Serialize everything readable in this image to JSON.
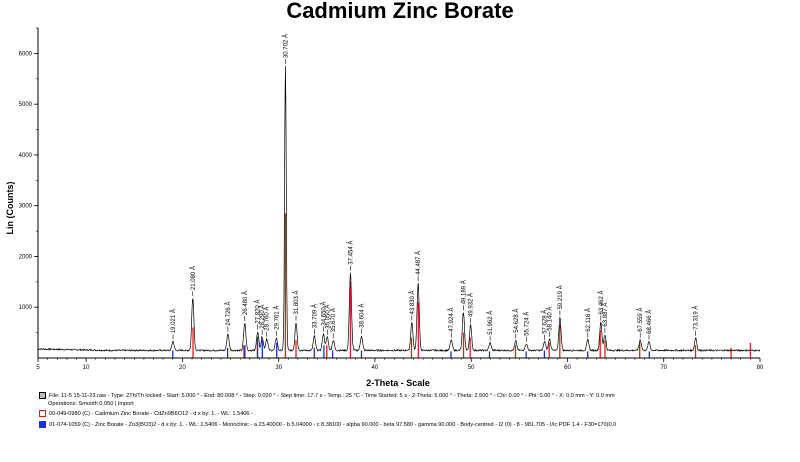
{
  "chart_data": {
    "type": "line",
    "title": "Cadmium Zinc Borate",
    "xlabel": "2-Theta - Scale",
    "ylabel": "Lin (Counts)",
    "xlim": [
      5,
      80
    ],
    "ylim": [
      0,
      6500
    ],
    "xticks": [
      5,
      10,
      20,
      30,
      40,
      50,
      60,
      70,
      80
    ],
    "yticks": [
      1000,
      2000,
      3000,
      4000,
      5000,
      6000
    ],
    "baseline": 150,
    "peaks": [
      {
        "x": 19.021,
        "y": 330,
        "label": "19.021 Å"
      },
      {
        "x": 21.08,
        "y": 1180,
        "label": "21.080 Å"
      },
      {
        "x": 24.726,
        "y": 480,
        "label": "24.726 Å"
      },
      {
        "x": 26.48,
        "y": 690,
        "label": "26.480 Å"
      },
      {
        "x": 27.82,
        "y": 520,
        "label": "27.820 Å"
      },
      {
        "x": 28.29,
        "y": 420,
        "label": "28.290 Å"
      },
      {
        "x": 28.76,
        "y": 380,
        "label": "28.760 Å"
      },
      {
        "x": 29.761,
        "y": 400,
        "label": "29.761 Å"
      },
      {
        "x": 30.702,
        "y": 5750,
        "label": "30.702 Å"
      },
      {
        "x": 31.803,
        "y": 700,
        "label": "31.803 Å"
      },
      {
        "x": 33.709,
        "y": 430,
        "label": "33.709 Å"
      },
      {
        "x": 34.65,
        "y": 480,
        "label": "34.650 Å"
      },
      {
        "x": 35.05,
        "y": 420,
        "label": "35.050 Å"
      },
      {
        "x": 35.67,
        "y": 350,
        "label": "35.670 Å"
      },
      {
        "x": 37.454,
        "y": 1680,
        "label": "37.454 Å"
      },
      {
        "x": 38.604,
        "y": 440,
        "label": "38.604 Å"
      },
      {
        "x": 43.83,
        "y": 700,
        "label": "43.830 Å"
      },
      {
        "x": 44.487,
        "y": 1480,
        "label": "44.487 Å"
      },
      {
        "x": 47.924,
        "y": 360,
        "label": "47.924 Å"
      },
      {
        "x": 49.189,
        "y": 900,
        "label": "49.189 Å"
      },
      {
        "x": 49.932,
        "y": 650,
        "label": "49.932 Å"
      },
      {
        "x": 51.962,
        "y": 300,
        "label": "51.962 Å"
      },
      {
        "x": 54.628,
        "y": 340,
        "label": "54.628 Å"
      },
      {
        "x": 55.724,
        "y": 280,
        "label": "55.724 Å"
      },
      {
        "x": 57.628,
        "y": 320,
        "label": "57.628 Å"
      },
      {
        "x": 58.14,
        "y": 380,
        "label": "58.140 Å"
      },
      {
        "x": 59.219,
        "y": 800,
        "label": "59.219 Å"
      },
      {
        "x": 62.116,
        "y": 360,
        "label": "62.116 Å"
      },
      {
        "x": 63.462,
        "y": 700,
        "label": "63.462 Å"
      },
      {
        "x": 63.887,
        "y": 460,
        "label": "63.887 Å"
      },
      {
        "x": 67.559,
        "y": 360,
        "label": "67.559 Å"
      },
      {
        "x": 68.466,
        "y": 320,
        "label": "68.466 Å"
      },
      {
        "x": 73.319,
        "y": 400,
        "label": "73.319 Å"
      }
    ],
    "reference_red": {
      "color": "#e0201e",
      "lines": [
        {
          "x": 21.1,
          "y": 600
        },
        {
          "x": 26.5,
          "y": 250
        },
        {
          "x": 27.8,
          "y": 300
        },
        {
          "x": 30.7,
          "y": 2850
        },
        {
          "x": 31.8,
          "y": 350
        },
        {
          "x": 35.0,
          "y": 250
        },
        {
          "x": 37.45,
          "y": 1500
        },
        {
          "x": 43.8,
          "y": 400
        },
        {
          "x": 44.5,
          "y": 1100
        },
        {
          "x": 49.2,
          "y": 500
        },
        {
          "x": 49.9,
          "y": 400
        },
        {
          "x": 54.6,
          "y": 250
        },
        {
          "x": 58.1,
          "y": 300
        },
        {
          "x": 59.2,
          "y": 650
        },
        {
          "x": 63.4,
          "y": 550
        },
        {
          "x": 63.9,
          "y": 350
        },
        {
          "x": 67.5,
          "y": 300
        },
        {
          "x": 73.3,
          "y": 250
        },
        {
          "x": 77.0,
          "y": 200
        },
        {
          "x": 79.0,
          "y": 300
        }
      ]
    },
    "reference_blue": {
      "color": "#1a2fd8",
      "lines": [
        {
          "x": 19.0,
          "y": 150
        },
        {
          "x": 24.7,
          "y": 200
        },
        {
          "x": 26.4,
          "y": 250
        },
        {
          "x": 27.8,
          "y": 420
        },
        {
          "x": 28.3,
          "y": 350
        },
        {
          "x": 29.8,
          "y": 300
        },
        {
          "x": 33.7,
          "y": 200
        },
        {
          "x": 34.7,
          "y": 250
        },
        {
          "x": 35.6,
          "y": 150
        },
        {
          "x": 38.6,
          "y": 150
        },
        {
          "x": 47.9,
          "y": 130
        },
        {
          "x": 51.9,
          "y": 130
        },
        {
          "x": 55.7,
          "y": 130
        },
        {
          "x": 57.6,
          "y": 150
        },
        {
          "x": 62.1,
          "y": 130
        },
        {
          "x": 68.5,
          "y": 130
        }
      ]
    },
    "legend": [
      {
        "color": "#7a7a7a",
        "text": "File: 11-5 15-11-23.raw - Type: 2Th/Th locked - Start: 5.000 ° - End: 80.008 ° - Step: 0.020 ° - Step time: 17.7 s - Temp.: 25 °C - Time Started: 5 s - 2-Theta: 5.000 ° - Theta: 2.500 ° - Chi: 0.00 ° - Phi: 0.00 ° - X: 0.0 mm - Y: 0.0 mm",
        "sub": "Operations: Smooth 0.050 | Import"
      },
      {
        "color": "#e0201e",
        "text": "00-049-0980 (C) - Cadmium Zinc Borate - CdZn9B6O12 - d x by: 1. - WL: 1.5406 -"
      },
      {
        "color": "#1a2fd8",
        "text": "01-074-1059 (C) - Zinc Borate - Zn3(BO3)2 - d x by: 1. - WL: 1.5406 - Monoclinic - a 23.40000 - b 5.04000 - c 8.38100 - alpha 90.000 - beta 97.580 - gamma 90.000 - Body-centred - I2 (0) - 8 - 981.705 - I/Ic PDF 1.4 - F30=170(0.0"
      }
    ]
  }
}
